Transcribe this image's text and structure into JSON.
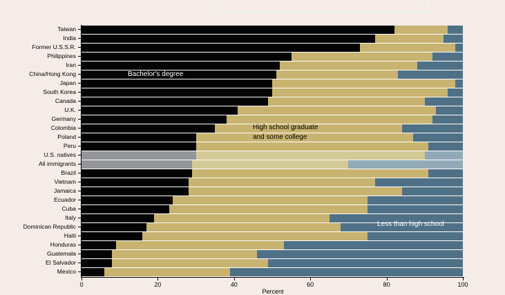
{
  "chart_data": {
    "type": "bar",
    "orientation": "horizontal",
    "stacked": true,
    "xlabel": "Percent",
    "xlim": [
      0,
      100
    ],
    "xticks": [
      0,
      20,
      40,
      60,
      80,
      100
    ],
    "grid": false,
    "legend_position": "none",
    "categories": [
      "Taiwan",
      "India",
      "Former U.S.S.R.",
      "Philippines",
      "Iran",
      "China/Hong Kong",
      "Japan",
      "South Korea",
      "Canada",
      "U.K.",
      "Germany",
      "Colombia",
      "Poland",
      "Peru",
      "U.S. natives",
      "All immigrants",
      "Brazil",
      "Vietnam",
      "Jamaica",
      "Ecuador",
      "Cuba",
      "Italy",
      "Dominican Republic",
      "Haiti",
      "Honduras",
      "Guatemala",
      "El Salvador",
      "Mexico"
    ],
    "series": [
      {
        "name": "Bachelor's degree",
        "values": [
          82,
          77,
          73,
          55,
          52,
          51,
          50,
          50,
          49,
          41,
          38,
          35,
          30,
          30,
          30,
          29,
          29,
          28,
          28,
          24,
          23,
          19,
          17,
          16,
          9,
          8,
          8,
          6
        ]
      },
      {
        "name": "High school graduate and some college",
        "values": [
          14,
          18,
          25,
          37,
          36,
          32,
          48,
          46,
          41,
          52,
          54,
          49,
          57,
          61,
          60,
          41,
          62,
          49,
          56,
          51,
          52,
          46,
          51,
          59,
          44,
          38,
          41,
          33
        ]
      },
      {
        "name": "Less than high school",
        "values": [
          4,
          5,
          2,
          8,
          12,
          17,
          2,
          4,
          10,
          7,
          8,
          16,
          13,
          9,
          10,
          30,
          9,
          23,
          16,
          25,
          25,
          35,
          32,
          25,
          47,
          54,
          51,
          61
        ]
      }
    ],
    "highlighted_rows": [
      "U.S. natives",
      "All immigrants"
    ],
    "annotations": {
      "bachelors": "Bachelor's degree",
      "hs_line1": "High school graduate",
      "hs_line2": "and some college",
      "less_hs": "Less than high school"
    },
    "colors": {
      "series": [
        "#040404",
        "#c8b370",
        "#4f7187"
      ],
      "muted_series": [
        "#949599",
        "#d4ca97",
        "#92aab7"
      ],
      "row_gap": "#ffffff",
      "background": "#f5ece7",
      "title_box": "#dce3d9",
      "axis": "#000000"
    }
  }
}
